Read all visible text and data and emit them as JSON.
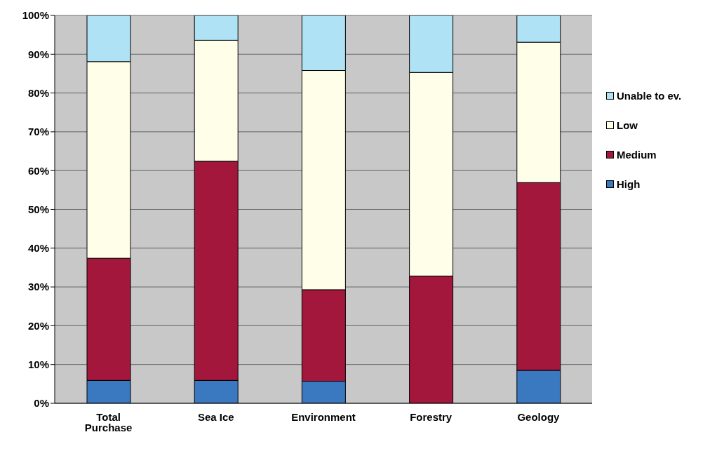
{
  "chart_data": {
    "type": "bar",
    "stacked": true,
    "categories": [
      "Total Purchase",
      "Sea Ice",
      "Environment",
      "Forestry",
      "Geology"
    ],
    "series": [
      {
        "name": "High",
        "color": "#3a78c0",
        "values": [
          5.9,
          5.9,
          5.7,
          0,
          8.5
        ]
      },
      {
        "name": "Medium",
        "color": "#a3173c",
        "values": [
          31.5,
          56.5,
          23.6,
          32.8,
          48.4
        ]
      },
      {
        "name": "Low",
        "color": "#fffee8",
        "values": [
          50.7,
          31.2,
          56.5,
          52.5,
          36.2
        ]
      },
      {
        "name": "Unable to ev.",
        "color": "#aee2f4",
        "values": [
          11.9,
          6.4,
          14.2,
          14.7,
          6.9
        ]
      }
    ],
    "ylim": [
      0,
      100
    ],
    "yticks": [
      {
        "value": 0,
        "label": "0%"
      },
      {
        "value": 10,
        "label": "10%"
      },
      {
        "value": 20,
        "label": "20%"
      },
      {
        "value": 30,
        "label": "30%"
      },
      {
        "value": 40,
        "label": "40%"
      },
      {
        "value": 50,
        "label": "50%"
      },
      {
        "value": 60,
        "label": "60%"
      },
      {
        "value": 70,
        "label": "70%"
      },
      {
        "value": 80,
        "label": "80%"
      },
      {
        "value": 90,
        "label": "90%"
      },
      {
        "value": 100,
        "label": "100%"
      }
    ],
    "grid": "y",
    "legend": "right"
  }
}
